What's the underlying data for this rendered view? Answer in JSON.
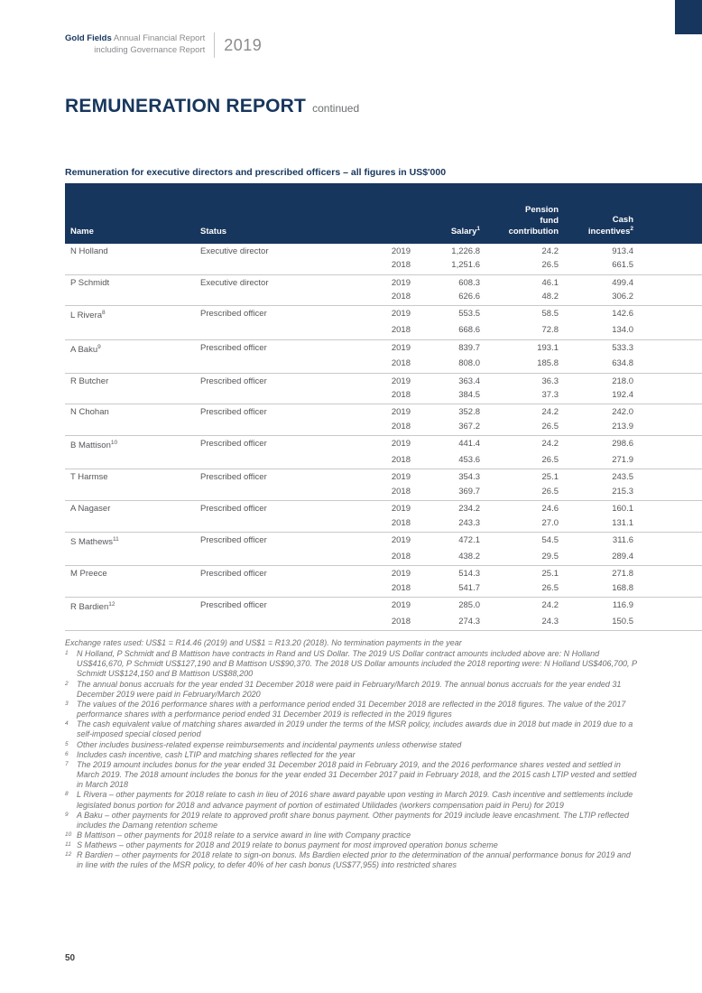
{
  "header": {
    "brand": "Gold Fields",
    "line1": "Annual Financial Report",
    "line2": "including Governance Report",
    "year": "2019"
  },
  "title": {
    "main": "REMUNERATION REPORT",
    "suffix": "continued"
  },
  "table": {
    "caption": "Remuneration for executive directors and prescribed officers – all figures in US$'000",
    "columns": {
      "name": "Name",
      "status": "Status",
      "salary": "Salary",
      "salary_sup": "1",
      "pension": "Pension\nfund\ncontribution",
      "cash": "Cash\nincentives",
      "cash_sup": "2"
    },
    "rows": [
      {
        "name": "N Holland",
        "sup": "",
        "status": "Executive director",
        "years": [
          {
            "year": "2019",
            "salary": "1,226.8",
            "pension": "24.2",
            "cash": "913.4"
          },
          {
            "year": "2018",
            "salary": "1,251.6",
            "pension": "26.5",
            "cash": "661.5"
          }
        ]
      },
      {
        "name": "P Schmidt",
        "sup": "",
        "status": "Executive director",
        "years": [
          {
            "year": "2019",
            "salary": "608.3",
            "pension": "46.1",
            "cash": "499.4"
          },
          {
            "year": "2018",
            "salary": "626.6",
            "pension": "48.2",
            "cash": "306.2"
          }
        ]
      },
      {
        "name": "L Rivera",
        "sup": "8",
        "status": "Prescribed officer",
        "years": [
          {
            "year": "2019",
            "salary": "553.5",
            "pension": "58.5",
            "cash": "142.6"
          },
          {
            "year": "2018",
            "salary": "668.6",
            "pension": "72.8",
            "cash": "134.0"
          }
        ]
      },
      {
        "name": "A Baku",
        "sup": "9",
        "status": "Prescribed officer",
        "years": [
          {
            "year": "2019",
            "salary": "839.7",
            "pension": "193.1",
            "cash": "533.3"
          },
          {
            "year": "2018",
            "salary": "808.0",
            "pension": "185.8",
            "cash": "634.8"
          }
        ]
      },
      {
        "name": "R Butcher",
        "sup": "",
        "status": "Prescribed officer",
        "years": [
          {
            "year": "2019",
            "salary": "363.4",
            "pension": "36.3",
            "cash": "218.0"
          },
          {
            "year": "2018",
            "salary": "384.5",
            "pension": "37.3",
            "cash": "192.4"
          }
        ]
      },
      {
        "name": "N Chohan",
        "sup": "",
        "status": "Prescribed officer",
        "years": [
          {
            "year": "2019",
            "salary": "352.8",
            "pension": "24.2",
            "cash": "242.0"
          },
          {
            "year": "2018",
            "salary": "367.2",
            "pension": "26.5",
            "cash": "213.9"
          }
        ]
      },
      {
        "name": "B Mattison",
        "sup": "10",
        "status": "Prescribed officer",
        "years": [
          {
            "year": "2019",
            "salary": "441.4",
            "pension": "24.2",
            "cash": "298.6"
          },
          {
            "year": "2018",
            "salary": "453.6",
            "pension": "26.5",
            "cash": "271.9"
          }
        ]
      },
      {
        "name": "T Harmse",
        "sup": "",
        "status": "Prescribed officer",
        "years": [
          {
            "year": "2019",
            "salary": "354.3",
            "pension": "25.1",
            "cash": "243.5"
          },
          {
            "year": "2018",
            "salary": "369.7",
            "pension": "26.5",
            "cash": "215.3"
          }
        ]
      },
      {
        "name": "A Nagaser",
        "sup": "",
        "status": "Prescribed officer",
        "years": [
          {
            "year": "2019",
            "salary": "234.2",
            "pension": "24.6",
            "cash": "160.1"
          },
          {
            "year": "2018",
            "salary": "243.3",
            "pension": "27.0",
            "cash": "131.1"
          }
        ]
      },
      {
        "name": "S Mathews",
        "sup": "11",
        "status": "Prescribed officer",
        "years": [
          {
            "year": "2019",
            "salary": "472.1",
            "pension": "54.5",
            "cash": "311.6"
          },
          {
            "year": "2018",
            "salary": "438.2",
            "pension": "29.5",
            "cash": "289.4"
          }
        ]
      },
      {
        "name": "M Preece",
        "sup": "",
        "status": "Prescribed officer",
        "years": [
          {
            "year": "2019",
            "salary": "514.3",
            "pension": "25.1",
            "cash": "271.8"
          },
          {
            "year": "2018",
            "salary": "541.7",
            "pension": "26.5",
            "cash": "168.8"
          }
        ]
      },
      {
        "name": "R Bardien",
        "sup": "12",
        "status": "Prescribed officer",
        "years": [
          {
            "year": "2019",
            "salary": "285.0",
            "pension": "24.2",
            "cash": "116.9"
          },
          {
            "year": "2018",
            "salary": "274.3",
            "pension": "24.3",
            "cash": "150.5"
          }
        ]
      }
    ]
  },
  "footnotes": {
    "intro": "Exchange rates used: US$1 = R14.46 (2019) and US$1 = R13.20 (2018). No termination payments in the year",
    "items": [
      {
        "num": "1",
        "text": "N Holland, P Schmidt and B Mattison have contracts in Rand and US Dollar. The 2019 US Dollar contract amounts included above are: N Holland US$416,670, P Schmidt US$127,190 and B Mattison US$90,370. The 2018 US Dollar amounts included the 2018 reporting were: N Holland US$406,700, P Schmidt US$124,150 and B Mattison US$88,200"
      },
      {
        "num": "2",
        "text": "The annual bonus accruals for the year ended 31 December 2018 were paid in February/March 2019. The annual bonus accruals for the year ended 31 December 2019 were paid in February/March 2020"
      },
      {
        "num": "3",
        "text": "The values of the 2016 performance shares with a performance period ended 31 December 2018 are reflected in the 2018 figures. The value of the 2017 performance shares with a performance period ended 31 December 2019 is reflected in the 2019 figures"
      },
      {
        "num": "4",
        "text": "The cash equivalent value of matching shares awarded in 2019 under the terms of the MSR policy, includes awards due in 2018 but made in 2019 due to a self-imposed special closed period"
      },
      {
        "num": "5",
        "text": "Other includes business-related expense reimbursements and incidental payments unless otherwise stated"
      },
      {
        "num": "6",
        "text": "Includes cash incentive, cash LTIP and matching shares reflected for the year"
      },
      {
        "num": "7",
        "text": "The 2019 amount includes bonus for the year ended 31 December 2018 paid in February 2019, and the 2016 performance shares vested and settled in March 2019. The 2018 amount includes the bonus for the year ended 31 December 2017 paid in February 2018, and the 2015 cash LTIP vested and settled in March 2018"
      },
      {
        "num": "8",
        "text": "L Rivera – other payments for 2018 relate to cash in lieu of 2016 share award payable upon vesting in March 2019. Cash incentive and settlements include legislated bonus portion for 2018 and advance payment of portion of estimated Utilidades (workers compensation paid in Peru) for 2019"
      },
      {
        "num": "9",
        "text": "A Baku – other payments for 2019 relate to approved profit share bonus payment. Other payments for 2019 include leave encashment. The LTIP reflected includes the Damang retention scheme"
      },
      {
        "num": "10",
        "text": "B Mattison – other payments for 2018 relate to a service award in line with Company practice"
      },
      {
        "num": "11",
        "text": "S Mathews – other payments for 2018 and 2019 relate to bonus payment for most improved operation bonus scheme"
      },
      {
        "num": "12",
        "text": "R Bardien – other payments for 2018 relate to sign-on bonus. Ms Bardien elected prior to the determination of the annual performance bonus for 2019 and in line with the rules of the MSR policy, to defer 40% of her cash bonus (US$77,955) into restricted shares"
      }
    ]
  },
  "page": {
    "number": "50"
  },
  "colors": {
    "navy": "#17365d",
    "gray_text": "#6d6e71",
    "rule": "#c8c9cb"
  }
}
